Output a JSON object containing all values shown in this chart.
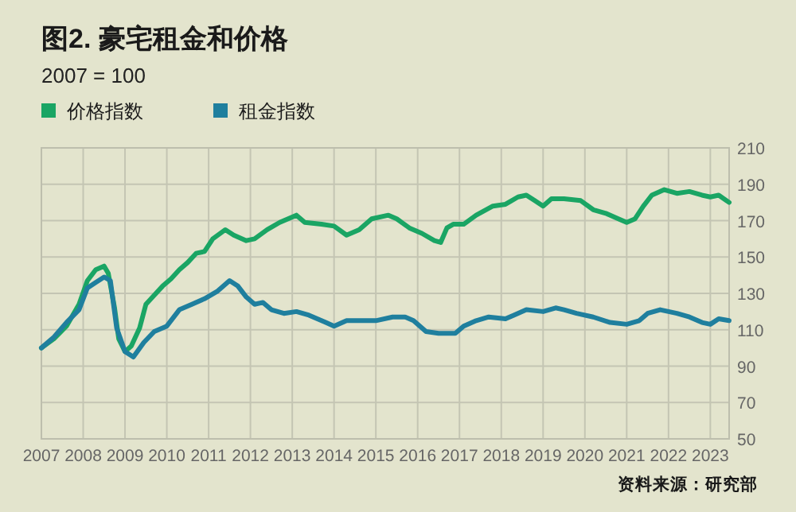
{
  "chart_data": {
    "type": "line",
    "title": "图2. 豪宅租金和价格",
    "subtitle": "2007 = 100",
    "annotations": [
      "资料来源：研究部"
    ],
    "legend": "top left",
    "grid": true,
    "marker": "none",
    "line_style": "solid",
    "xlim": [
      2007,
      2023.45
    ],
    "xticks": [
      2007,
      2008,
      2009,
      2010,
      2011,
      2012,
      2013,
      2014,
      2015,
      2016,
      2017,
      2018,
      2019,
      2020,
      2021,
      2022,
      2023
    ],
    "ylim": [
      50,
      210
    ],
    "yticks": [
      50,
      70,
      90,
      110,
      130,
      150,
      170,
      190,
      210
    ],
    "series": [
      {
        "name": "价格指数",
        "color": "#1aa564",
        "x": [
          2007.0,
          2007.3,
          2007.6,
          2007.9,
          2008.1,
          2008.3,
          2008.5,
          2008.6,
          2008.75,
          2008.85,
          2009.0,
          2009.15,
          2009.35,
          2009.5,
          2009.7,
          2009.9,
          2010.1,
          2010.3,
          2010.5,
          2010.7,
          2010.9,
          2011.1,
          2011.4,
          2011.6,
          2011.9,
          2012.1,
          2012.4,
          2012.7,
          2013.0,
          2013.1,
          2013.3,
          2013.7,
          2014.0,
          2014.3,
          2014.6,
          2014.9,
          2015.3,
          2015.5,
          2015.8,
          2016.1,
          2016.4,
          2016.55,
          2016.7,
          2016.85,
          2017.1,
          2017.4,
          2017.8,
          2018.1,
          2018.4,
          2018.6,
          2018.8,
          2019.0,
          2019.2,
          2019.5,
          2019.9,
          2020.2,
          2020.5,
          2020.8,
          2021.0,
          2021.2,
          2021.4,
          2021.6,
          2021.9,
          2022.2,
          2022.5,
          2022.8,
          2023.0,
          2023.2,
          2023.45
        ],
        "values": [
          100,
          105,
          112,
          124,
          137,
          143,
          145,
          141,
          122,
          105,
          98,
          101,
          111,
          124,
          129,
          134,
          138,
          143,
          147,
          152,
          153,
          160,
          165,
          162,
          159,
          160,
          165,
          169,
          172,
          173,
          169,
          168,
          167,
          162,
          165,
          171,
          173,
          171,
          166,
          163,
          159,
          158,
          166,
          168,
          168,
          173,
          178,
          179,
          183,
          184,
          181,
          178,
          182,
          182,
          181,
          176,
          174,
          171,
          169,
          171,
          178,
          184,
          187,
          185,
          186,
          184,
          183,
          184,
          180
        ]
      },
      {
        "name": "租金指数",
        "color": "#1f7f9e",
        "x": [
          2007.0,
          2007.3,
          2007.6,
          2007.9,
          2008.1,
          2008.3,
          2008.5,
          2008.65,
          2008.8,
          2009.0,
          2009.2,
          2009.45,
          2009.7,
          2010.0,
          2010.3,
          2010.6,
          2010.9,
          2011.2,
          2011.5,
          2011.7,
          2011.9,
          2012.1,
          2012.3,
          2012.5,
          2012.8,
          2013.1,
          2013.4,
          2013.8,
          2014.0,
          2014.3,
          2014.7,
          2015.0,
          2015.4,
          2015.7,
          2015.9,
          2016.2,
          2016.5,
          2016.9,
          2017.1,
          2017.4,
          2017.7,
          2018.1,
          2018.3,
          2018.6,
          2019.0,
          2019.3,
          2019.5,
          2019.8,
          2020.2,
          2020.6,
          2021.0,
          2021.3,
          2021.5,
          2021.8,
          2022.2,
          2022.5,
          2022.8,
          2023.0,
          2023.2,
          2023.45
        ],
        "values": [
          100,
          106,
          114,
          121,
          133,
          136,
          139,
          137,
          111,
          98,
          95,
          103,
          109,
          112,
          121,
          124,
          127,
          131,
          137,
          134,
          128,
          124,
          125,
          121,
          119,
          120,
          118,
          114,
          112,
          115,
          115,
          115,
          117,
          117,
          115,
          109,
          108,
          108,
          112,
          115,
          117,
          116,
          118,
          121,
          120,
          122,
          121,
          119,
          117,
          114,
          113,
          115,
          119,
          121,
          119,
          117,
          114,
          113,
          116,
          115
        ]
      }
    ]
  }
}
